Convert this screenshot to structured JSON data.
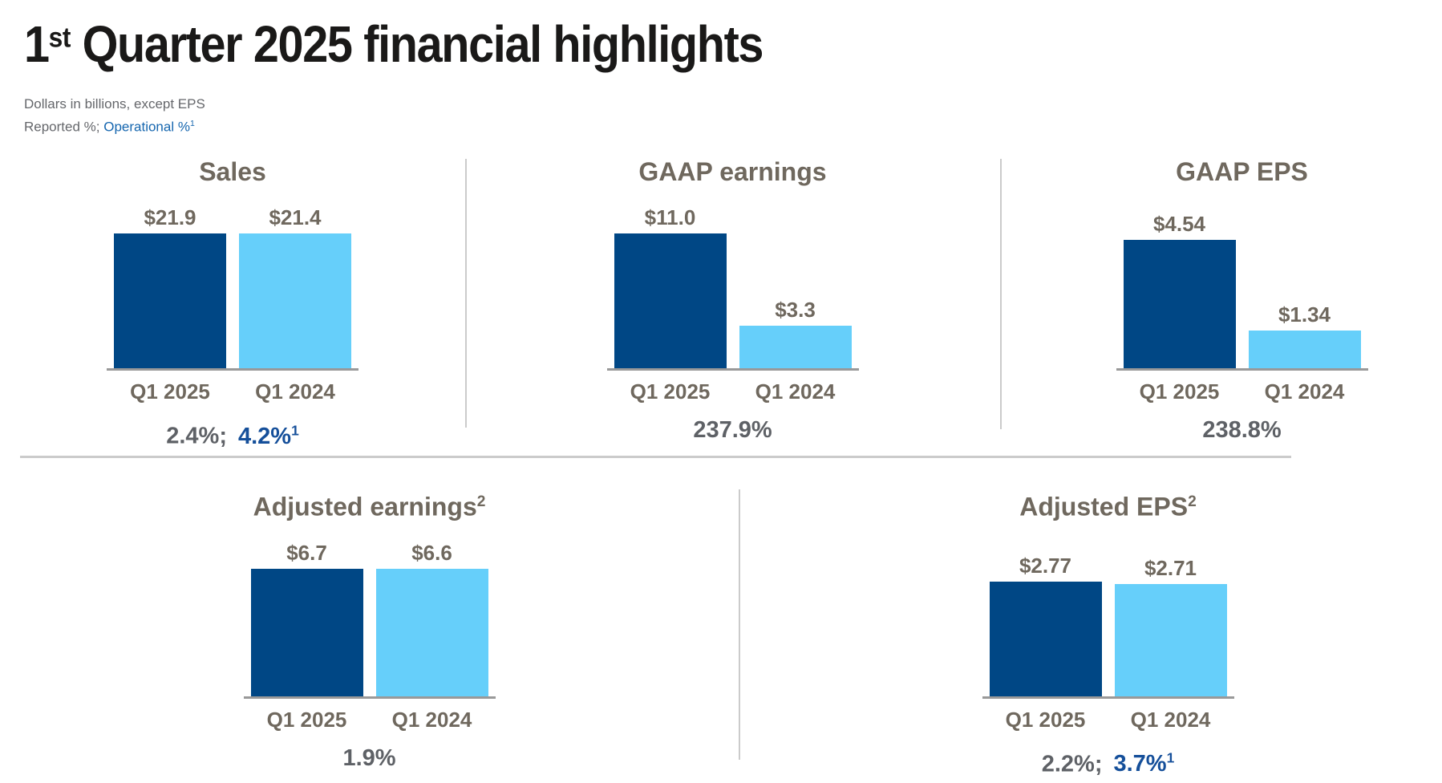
{
  "header": {
    "title_number": "1",
    "title_ordinal_sup": "st",
    "title_rest": " Quarter 2025 financial highlights",
    "subtitle_line1": "Dollars in billions, except EPS",
    "subtitle_reported": "Reported %; ",
    "subtitle_operational": "Operational %",
    "subtitle_operational_sup": "1"
  },
  "colors": {
    "bar_current": "#004785",
    "bar_prior": "#66CFFA",
    "text_dark": "#1A1918",
    "text_taupe": "#6F685E",
    "text_gray": "#65676B",
    "text_blue": "#1566AF",
    "growth_gray": "#5E6166",
    "growth_blue": "#154F9A",
    "axis_line": "#999999",
    "divider": "#CBCBCB"
  },
  "chart_data": [
    {
      "type": "bar",
      "title": "Sales",
      "title_sup": "",
      "categories": [
        "Q1 2025",
        "Q1 2024"
      ],
      "values": [
        21.9,
        21.4
      ],
      "value_labels": [
        "$21.9",
        "$21.4"
      ],
      "growth_reported": "2.4%;",
      "growth_operational": "4.2%",
      "growth_operational_sup": "1",
      "ylim": [
        0,
        21.9
      ],
      "legend_position": "none",
      "grid": false
    },
    {
      "type": "bar",
      "title": "GAAP earnings",
      "title_sup": "",
      "categories": [
        "Q1 2025",
        "Q1 2024"
      ],
      "values": [
        11.0,
        3.3
      ],
      "value_labels": [
        "$11.0",
        "$3.3"
      ],
      "growth_reported": "237.9%",
      "growth_operational": "",
      "growth_operational_sup": "",
      "ylim": [
        0,
        11.0
      ],
      "legend_position": "none",
      "grid": false
    },
    {
      "type": "bar",
      "title": "GAAP EPS",
      "title_sup": "",
      "categories": [
        "Q1 2025",
        "Q1 2024"
      ],
      "values": [
        4.54,
        1.34
      ],
      "value_labels": [
        "$4.54",
        "$1.34"
      ],
      "growth_reported": "238.8%",
      "growth_operational": "",
      "growth_operational_sup": "",
      "ylim": [
        0,
        4.54
      ],
      "legend_position": "none",
      "grid": false
    },
    {
      "type": "bar",
      "title": "Adjusted earnings",
      "title_sup": "2",
      "categories": [
        "Q1 2025",
        "Q1 2024"
      ],
      "values": [
        6.7,
        6.6
      ],
      "value_labels": [
        "$6.7",
        "$6.6"
      ],
      "growth_reported": "1.9%",
      "growth_operational": "",
      "growth_operational_sup": "",
      "ylim": [
        0,
        6.7
      ],
      "legend_position": "none",
      "grid": false
    },
    {
      "type": "bar",
      "title": "Adjusted EPS",
      "title_sup": "2",
      "categories": [
        "Q1 2025",
        "Q1 2024"
      ],
      "values": [
        2.77,
        2.71
      ],
      "value_labels": [
        "$2.77",
        "$2.71"
      ],
      "growth_reported": "2.2%;",
      "growth_operational": "3.7%",
      "growth_operational_sup": "1",
      "ylim": [
        0,
        2.77
      ],
      "legend_position": "none",
      "grid": false
    }
  ]
}
